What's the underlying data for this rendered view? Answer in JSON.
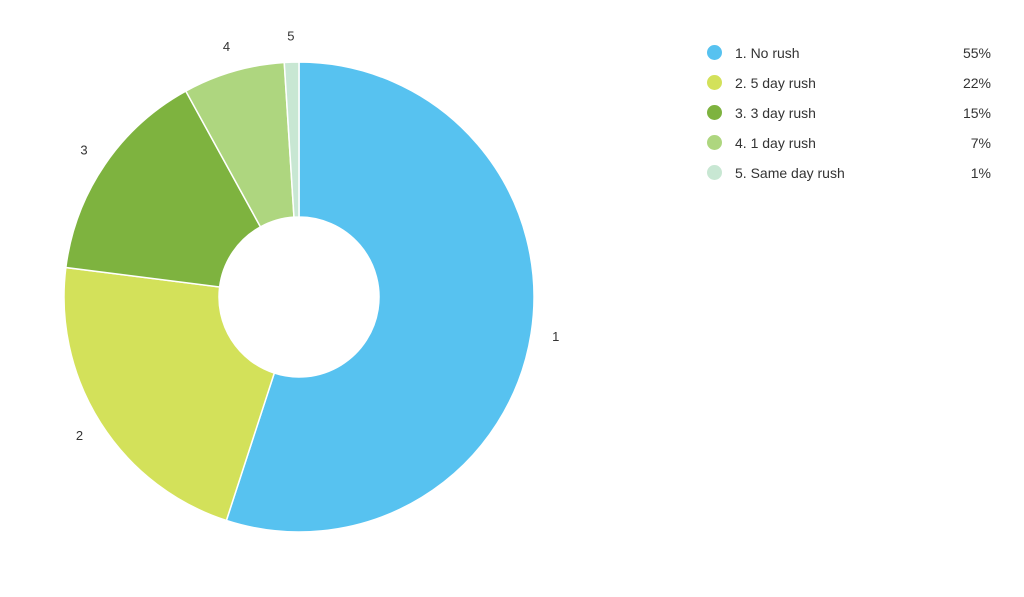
{
  "chart_data": {
    "type": "pie",
    "variant": "donut",
    "slices": [
      {
        "label": "1",
        "name": "1. No rush",
        "value": 55,
        "display": "55%",
        "color": "#57C2F0"
      },
      {
        "label": "2",
        "name": "2. 5 day rush",
        "value": 22,
        "display": "22%",
        "color": "#D3E15A"
      },
      {
        "label": "3",
        "name": "3. 3 day rush",
        "value": 15,
        "display": "15%",
        "color": "#7EB33F"
      },
      {
        "label": "4",
        "name": "4. 1 day rush",
        "value": 7,
        "display": "7%",
        "color": "#AED67F"
      },
      {
        "label": "5",
        "name": "5. Same day rush",
        "value": 1,
        "display": "1%",
        "color": "#C8E7D3"
      }
    ],
    "legend_position": "right"
  }
}
